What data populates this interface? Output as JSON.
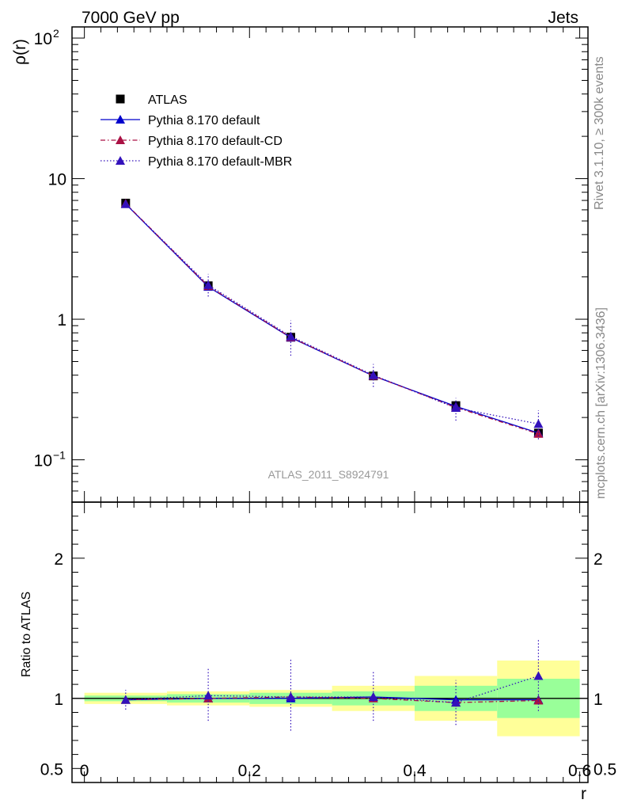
{
  "header": {
    "left_label": "7000 GeV pp",
    "right_label": "Jets"
  },
  "side_labels": {
    "rivet": "Rivet 3.1.10, ≥ 300k events",
    "mcplots": "mcplots.cern.ch [arXiv:1306.3436]"
  },
  "watermark": "ATLAS_2011_S8924791",
  "legend_entries": [
    {
      "label": "ATLAS",
      "color": "#000000",
      "marker": "square",
      "line": "none"
    },
    {
      "label": "Pythia 8.170 default",
      "color": "#0000cc",
      "marker": "triangle",
      "line": "solid"
    },
    {
      "label": "Pythia 8.170 default-CD",
      "color": "#aa1144",
      "marker": "triangle",
      "line": "dashdot"
    },
    {
      "label": "Pythia 8.170 default-MBR",
      "color": "#3311bb",
      "marker": "triangle",
      "line": "dotted"
    }
  ],
  "chart_data": [
    {
      "type": "line",
      "panel": "main",
      "ylabel": "ρ(r)",
      "yscale": "log",
      "ylim": [
        0.05,
        120
      ],
      "xlim": [
        -0.015,
        0.61
      ],
      "yticks": [
        {
          "value": 0.1,
          "label": "10",
          "sup": "−1"
        },
        {
          "value": 1,
          "label": "1",
          "sup": ""
        },
        {
          "value": 10,
          "label": "10",
          "sup": ""
        },
        {
          "value": 100,
          "label": "10",
          "sup": "2"
        }
      ],
      "x": [
        0.05,
        0.15,
        0.25,
        0.35,
        0.45,
        0.55
      ],
      "series": [
        {
          "name": "ATLAS",
          "values": [
            6.7,
            1.73,
            0.745,
            0.395,
            0.243,
            0.155
          ]
        },
        {
          "name": "Pythia 8.170 default",
          "values": [
            6.6,
            1.7,
            0.74,
            0.395,
            0.24,
            0.155
          ],
          "err_lo": [
            6.45,
            1.65,
            0.72,
            0.385,
            0.232,
            0.15
          ],
          "err_hi": [
            6.75,
            1.75,
            0.76,
            0.405,
            0.248,
            0.16
          ]
        },
        {
          "name": "Pythia 8.170 default-CD",
          "values": [
            6.65,
            1.72,
            0.745,
            0.396,
            0.236,
            0.153
          ],
          "err_lo": [
            6.5,
            1.67,
            0.725,
            0.387,
            0.228,
            0.148
          ],
          "err_hi": [
            6.8,
            1.77,
            0.765,
            0.405,
            0.244,
            0.158
          ]
        },
        {
          "name": "Pythia 8.170 default-MBR",
          "values": [
            6.6,
            1.75,
            0.755,
            0.4,
            0.234,
            0.18
          ],
          "err_lo": [
            6.2,
            1.45,
            0.55,
            0.33,
            0.19,
            0.14
          ],
          "err_hi": [
            7.0,
            2.1,
            0.98,
            0.48,
            0.275,
            0.225
          ]
        }
      ]
    },
    {
      "type": "line",
      "panel": "ratio",
      "ylabel": "Ratio to ATLAS",
      "xlabel": "r",
      "ylim": [
        0.4,
        2.4
      ],
      "xlim": [
        -0.015,
        0.61
      ],
      "xticks": [
        {
          "value": 0,
          "label": "0"
        },
        {
          "value": 0.2,
          "label": "0.2"
        },
        {
          "value": 0.4,
          "label": "0.4"
        },
        {
          "value": 0.6,
          "label": "0.6"
        }
      ],
      "yticks": [
        {
          "value": 0.5,
          "label": "0.5"
        },
        {
          "value": 1,
          "label": "1"
        },
        {
          "value": 2,
          "label": "2"
        }
      ],
      "bins": [
        [
          0.0,
          0.1
        ],
        [
          0.1,
          0.2
        ],
        [
          0.2,
          0.3
        ],
        [
          0.3,
          0.4
        ],
        [
          0.4,
          0.5
        ],
        [
          0.5,
          0.6
        ]
      ],
      "band_yellow": [
        [
          0.96,
          1.04
        ],
        [
          0.95,
          1.05
        ],
        [
          0.94,
          1.06
        ],
        [
          0.91,
          1.09
        ],
        [
          0.84,
          1.16
        ],
        [
          0.73,
          1.27
        ]
      ],
      "band_green": [
        [
          0.98,
          1.02
        ],
        [
          0.97,
          1.03
        ],
        [
          0.96,
          1.04
        ],
        [
          0.95,
          1.05
        ],
        [
          0.91,
          1.09
        ],
        [
          0.86,
          1.14
        ]
      ],
      "x": [
        0.05,
        0.15,
        0.25,
        0.35,
        0.45,
        0.55
      ],
      "series": [
        {
          "name": "Pythia 8.170 default",
          "values": [
            0.99,
            1.0,
            1.0,
            1.01,
            0.99,
            0.99
          ]
        },
        {
          "name": "Pythia 8.170 default-CD",
          "values": [
            0.99,
            1.0,
            1.01,
            1.0,
            0.97,
            0.985
          ],
          "err_lo": [
            0.97,
            0.98,
            0.98,
            0.98,
            0.94,
            0.96
          ],
          "err_hi": [
            1.01,
            1.02,
            1.04,
            1.02,
            1.0,
            1.01
          ]
        },
        {
          "name": "Pythia 8.170 default-MBR",
          "values": [
            0.99,
            1.02,
            1.01,
            1.01,
            0.97,
            1.16
          ],
          "err_lo": [
            0.92,
            0.84,
            0.77,
            0.84,
            0.81,
            0.91
          ],
          "err_hi": [
            1.06,
            1.22,
            1.28,
            1.2,
            1.13,
            1.42
          ]
        }
      ]
    }
  ]
}
